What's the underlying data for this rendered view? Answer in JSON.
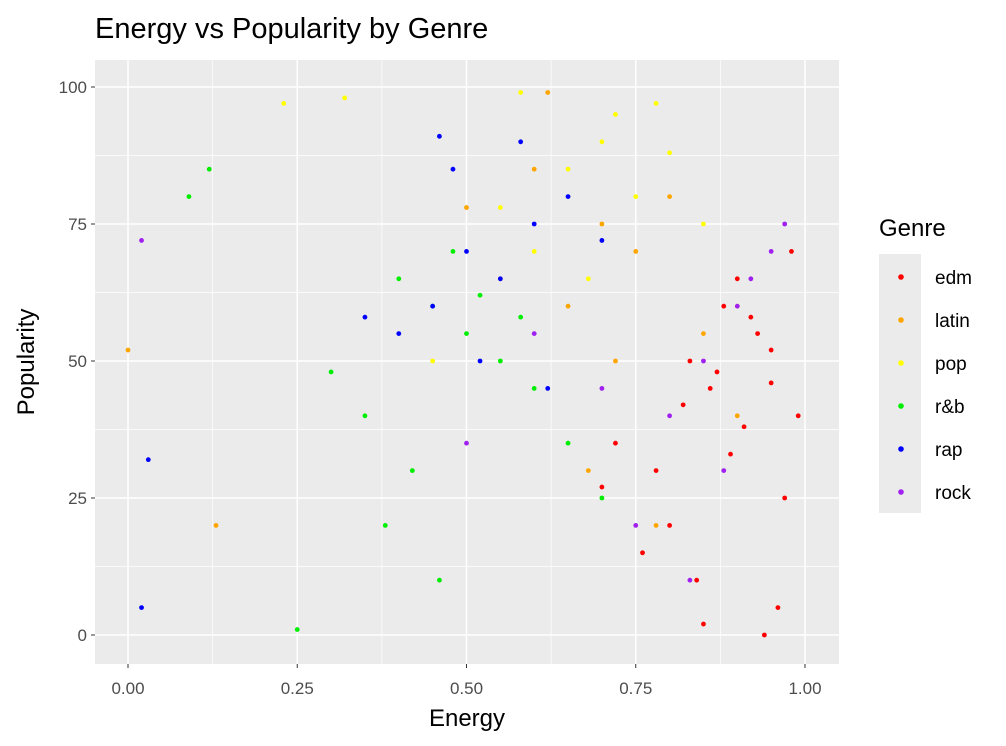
{
  "chart_data": {
    "type": "scatter",
    "title": "Energy vs Popularity by Genre",
    "xlabel": "Energy",
    "ylabel": "Popularity",
    "xlim": [
      0.0,
      1.0
    ],
    "ylim": [
      0,
      100
    ],
    "x_ticks": [
      "0.00",
      "0.25",
      "0.50",
      "0.75",
      "1.00"
    ],
    "y_ticks": [
      "0",
      "25",
      "50",
      "75",
      "100"
    ],
    "grid": true,
    "legend_position": "right",
    "legend_title": "Genre",
    "background_color": "#ebebeb",
    "grid_color": "#ffffff",
    "series": [
      {
        "name": "edm",
        "color": "#ff0000",
        "x": [
          0.86,
          0.91,
          0.95,
          0.78,
          0.88,
          0.97,
          0.84,
          0.93,
          0.99,
          0.8,
          0.9,
          0.96,
          0.72,
          0.87,
          0.94,
          0.82,
          0.98,
          0.76,
          0.89,
          0.92,
          0.85,
          0.7,
          0.95,
          0.83
        ],
        "y": [
          45,
          38,
          52,
          30,
          60,
          25,
          10,
          55,
          40,
          20,
          65,
          5,
          35,
          48,
          0,
          42,
          70,
          15,
          33,
          58,
          2,
          27,
          46,
          50
        ]
      },
      {
        "name": "latin",
        "color": "#ffa500",
        "x": [
          0.7,
          0.65,
          0.8,
          0.6,
          0.75,
          0.85,
          0.55,
          0.72,
          0.9,
          0.5,
          0.68,
          0.78,
          0.13,
          0.0,
          0.62
        ],
        "y": [
          75,
          60,
          80,
          85,
          70,
          55,
          65,
          50,
          40,
          78,
          30,
          20,
          20,
          52,
          99
        ]
      },
      {
        "name": "pop",
        "color": "#ffff00",
        "x": [
          0.65,
          0.7,
          0.75,
          0.58,
          0.8,
          0.85,
          0.6,
          0.72,
          0.68,
          0.9,
          0.23,
          0.32,
          0.45,
          0.55,
          0.78
        ],
        "y": [
          85,
          90,
          80,
          99,
          88,
          75,
          70,
          95,
          65,
          60,
          97,
          98,
          50,
          78,
          97
        ]
      },
      {
        "name": "r&b",
        "color": "#00ee00",
        "x": [
          0.45,
          0.5,
          0.4,
          0.55,
          0.35,
          0.6,
          0.48,
          0.42,
          0.52,
          0.38,
          0.65,
          0.3,
          0.12,
          0.09,
          0.58,
          0.46,
          0.7,
          0.25
        ],
        "y": [
          60,
          55,
          65,
          50,
          40,
          45,
          70,
          30,
          62,
          20,
          35,
          48,
          85,
          80,
          58,
          10,
          25,
          1
        ]
      },
      {
        "name": "rap",
        "color": "#0000ff",
        "x": [
          0.5,
          0.55,
          0.45,
          0.6,
          0.4,
          0.65,
          0.52,
          0.48,
          0.7,
          0.35,
          0.58,
          0.62,
          0.02,
          0.03,
          0.46
        ],
        "y": [
          70,
          65,
          60,
          75,
          55,
          80,
          50,
          85,
          72,
          58,
          90,
          45,
          5,
          32,
          91
        ]
      },
      {
        "name": "rock",
        "color": "#a020f0",
        "x": [
          0.9,
          0.95,
          0.85,
          0.8,
          0.92,
          0.88,
          0.7,
          0.6,
          0.97,
          0.75,
          0.02,
          0.5,
          0.83
        ],
        "y": [
          60,
          70,
          50,
          40,
          65,
          30,
          45,
          55,
          75,
          20,
          72,
          35,
          10
        ]
      }
    ]
  }
}
